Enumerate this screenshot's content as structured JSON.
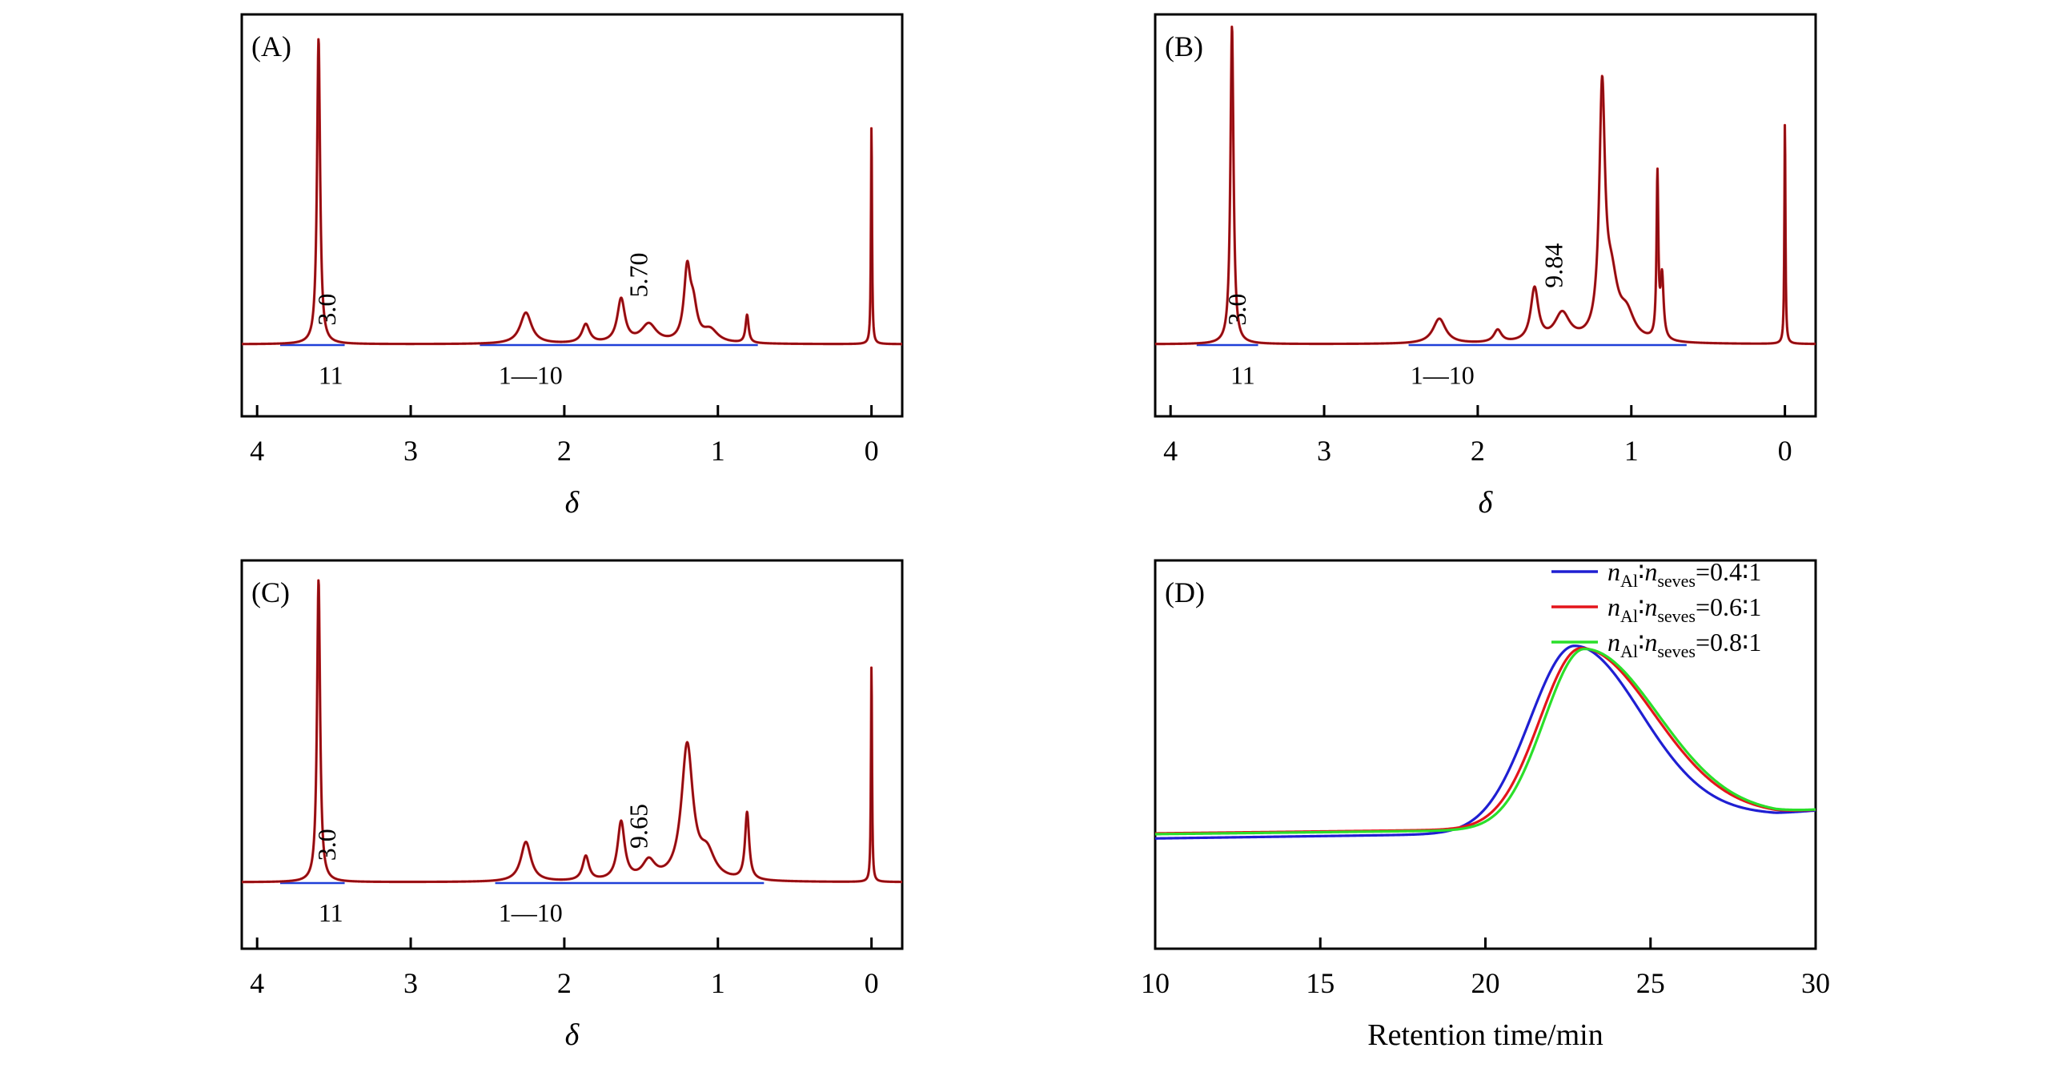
{
  "chart_data": [
    {
      "id": "A",
      "type": "line",
      "panel_label": "(A)",
      "xlabel": "δ",
      "x_reversed": true,
      "xlim": [
        4.1,
        -0.2
      ],
      "ylim": [
        0,
        1.1
      ],
      "xticks": [
        4,
        3,
        2,
        1,
        0
      ],
      "xtick_labels": [
        "4",
        "3",
        "2",
        "1",
        "0"
      ],
      "peaks": [
        {
          "x": 3.6,
          "h": 0.98,
          "w": 0.012
        },
        {
          "x": 2.25,
          "h": 0.1,
          "w": 0.045
        },
        {
          "x": 1.86,
          "h": 0.06,
          "w": 0.03
        },
        {
          "x": 1.63,
          "h": 0.14,
          "w": 0.03
        },
        {
          "x": 1.45,
          "h": 0.06,
          "w": 0.06
        },
        {
          "x": 1.2,
          "h": 0.22,
          "w": 0.025
        },
        {
          "x": 1.16,
          "h": 0.1,
          "w": 0.03
        },
        {
          "x": 1.05,
          "h": 0.04,
          "w": 0.06
        },
        {
          "x": 0.81,
          "h": 0.09,
          "w": 0.012
        },
        {
          "x": 0.0,
          "h": 0.71,
          "w": 0.004
        }
      ],
      "integration_lines": [
        {
          "from": 3.85,
          "to": 3.43
        },
        {
          "from": 2.55,
          "to": 0.74
        }
      ],
      "annotations": [
        {
          "text": "3.0",
          "x": 3.49,
          "y": 0.06,
          "rotate": true
        },
        {
          "text": "5.70",
          "x": 1.46,
          "y": 0.15,
          "rotate": true
        },
        {
          "text": "11",
          "x": 3.52,
          "y": -0.055,
          "rotate": false
        },
        {
          "text": "1—10",
          "x": 2.22,
          "y": -0.055,
          "rotate": false
        }
      ]
    },
    {
      "id": "B",
      "type": "line",
      "panel_label": "(B)",
      "xlabel": "δ",
      "x_reversed": true,
      "xlim": [
        4.1,
        -0.2
      ],
      "ylim": [
        0,
        1.1
      ],
      "xticks": [
        4,
        3,
        2,
        1,
        0
      ],
      "xtick_labels": [
        "4",
        "3",
        "2",
        "1",
        "0"
      ],
      "peaks": [
        {
          "x": 3.6,
          "h": 1.02,
          "w": 0.012
        },
        {
          "x": 2.25,
          "h": 0.08,
          "w": 0.05
        },
        {
          "x": 1.87,
          "h": 0.04,
          "w": 0.03
        },
        {
          "x": 1.63,
          "h": 0.17,
          "w": 0.03
        },
        {
          "x": 1.45,
          "h": 0.09,
          "w": 0.06
        },
        {
          "x": 1.19,
          "h": 0.77,
          "w": 0.022
        },
        {
          "x": 1.13,
          "h": 0.18,
          "w": 0.05
        },
        {
          "x": 1.03,
          "h": 0.08,
          "w": 0.06
        },
        {
          "x": 0.83,
          "h": 0.52,
          "w": 0.007
        },
        {
          "x": 0.8,
          "h": 0.2,
          "w": 0.012
        },
        {
          "x": 0.0,
          "h": 0.72,
          "w": 0.004
        }
      ],
      "integration_lines": [
        {
          "from": 3.83,
          "to": 3.43
        },
        {
          "from": 2.45,
          "to": 0.64
        }
      ],
      "annotations": [
        {
          "text": "3.0",
          "x": 3.51,
          "y": 0.06,
          "rotate": true
        },
        {
          "text": "9.84",
          "x": 1.45,
          "y": 0.18,
          "rotate": true
        },
        {
          "text": "11",
          "x": 3.53,
          "y": -0.055,
          "rotate": false
        },
        {
          "text": "1—10",
          "x": 2.23,
          "y": -0.055,
          "rotate": false
        }
      ]
    },
    {
      "id": "C",
      "type": "line",
      "panel_label": "(C)",
      "xlabel": "δ",
      "x_reversed": true,
      "xlim": [
        4.1,
        -0.2
      ],
      "ylim": [
        0,
        1.1
      ],
      "xticks": [
        4,
        3,
        2,
        1,
        0
      ],
      "xtick_labels": [
        "4",
        "3",
        "2",
        "1",
        "0"
      ],
      "peaks": [
        {
          "x": 3.6,
          "h": 0.99,
          "w": 0.012
        },
        {
          "x": 2.25,
          "h": 0.13,
          "w": 0.04
        },
        {
          "x": 1.86,
          "h": 0.08,
          "w": 0.025
        },
        {
          "x": 1.63,
          "h": 0.19,
          "w": 0.028
        },
        {
          "x": 1.45,
          "h": 0.06,
          "w": 0.05
        },
        {
          "x": 1.2,
          "h": 0.44,
          "w": 0.045
        },
        {
          "x": 1.07,
          "h": 0.08,
          "w": 0.06
        },
        {
          "x": 0.81,
          "h": 0.22,
          "w": 0.016
        },
        {
          "x": 0.0,
          "h": 0.72,
          "w": 0.004
        }
      ],
      "integration_lines": [
        {
          "from": 3.85,
          "to": 3.43
        },
        {
          "from": 2.45,
          "to": 0.7
        }
      ],
      "annotations": [
        {
          "text": "3.0",
          "x": 3.49,
          "y": 0.07,
          "rotate": true
        },
        {
          "text": "9.65",
          "x": 1.46,
          "y": 0.11,
          "rotate": true
        },
        {
          "text": "11",
          "x": 3.52,
          "y": -0.055,
          "rotate": false
        },
        {
          "text": "1—10",
          "x": 2.22,
          "y": -0.055,
          "rotate": false
        }
      ]
    },
    {
      "id": "D",
      "type": "line",
      "panel_label": "(D)",
      "xlabel": "Retention time/min",
      "xlim": [
        10,
        30
      ],
      "ylim": [
        0,
        1
      ],
      "xticks": [
        10,
        15,
        20,
        25,
        30
      ],
      "xtick_labels": [
        "10",
        "15",
        "20",
        "25",
        "30"
      ],
      "legend_position": "top-right",
      "series": [
        {
          "name": "0.4∶1",
          "ratio": "0.4∶1",
          "color": "#1f1fd2",
          "baseline": 0.284,
          "slope": 0.0012,
          "peak_x": 22.7,
          "peak_y": 0.78,
          "sigma_left": 1.35,
          "sigma_right": 2.0,
          "tail": 0.346
        },
        {
          "name": "0.6∶1",
          "ratio": "0.6∶1",
          "color": "#e4151b",
          "baseline": 0.297,
          "slope": 0.001,
          "peak_x": 22.9,
          "peak_y": 0.774,
          "sigma_left": 1.25,
          "sigma_right": 2.2,
          "tail": 0.346
        },
        {
          "name": "0.8∶1",
          "ratio": "0.8∶1",
          "color": "#2adf2a",
          "baseline": 0.295,
          "slope": 0.001,
          "peak_x": 23.0,
          "peak_y": 0.772,
          "sigma_left": 1.22,
          "sigma_right": 2.22,
          "tail": 0.346
        }
      ],
      "legend_prefix_1": "n",
      "legend_sub_1": "Al",
      "legend_sep": "∶",
      "legend_prefix_2": "n",
      "legend_sub_2": "seves",
      "legend_eq": "="
    }
  ],
  "colors": {
    "spectrum_line": "#8b0d12",
    "spectrum_overlay": "#d42a2a",
    "integration_line": "#1f3fd8",
    "axis": "#000000"
  }
}
